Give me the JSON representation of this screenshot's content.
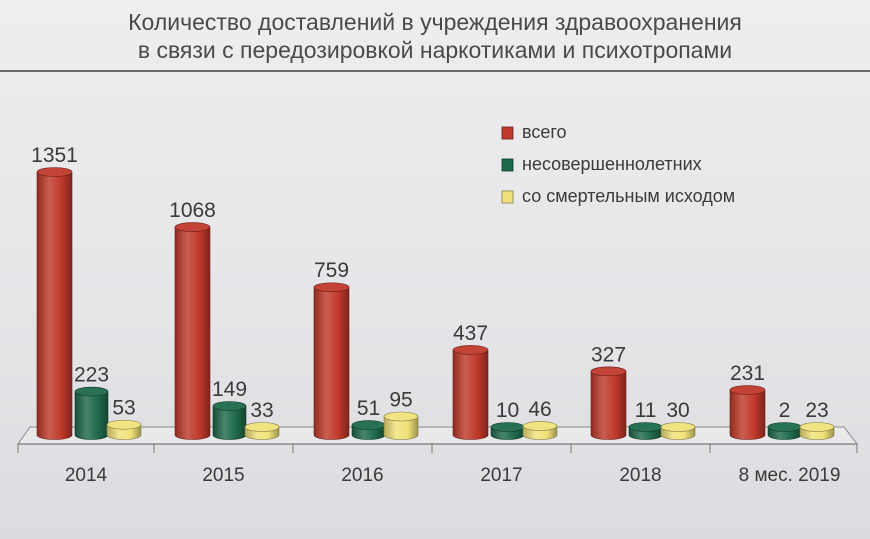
{
  "title_lines": [
    "Количество доставлений в учреждения здравоохранения",
    "в связи с передозировкой наркотиками и психотропами"
  ],
  "colors": {
    "red": "#c0392b",
    "green": "#1e6a4a",
    "yellow": "#f0e27a",
    "text": "#3a3a3a"
  },
  "chart_data": {
    "type": "bar",
    "title": "Количество доставлений в учреждения здравоохранения в связи с передозировкой наркотиками и психотропами",
    "categories": [
      "2014",
      "2015",
      "2016",
      "2017",
      "2018",
      "8 мес. 2019"
    ],
    "series": [
      {
        "name": "всего",
        "values": [
          1351,
          1068,
          759,
          437,
          327,
          231
        ]
      },
      {
        "name": "несовершеннолетних",
        "values": [
          223,
          149,
          51,
          10,
          11,
          2
        ]
      },
      {
        "name": "со смертельным исходом",
        "values": [
          53,
          33,
          95,
          46,
          30,
          23
        ]
      }
    ],
    "legend": "top-right",
    "grid": false,
    "ylim": [
      0,
      1351
    ]
  }
}
